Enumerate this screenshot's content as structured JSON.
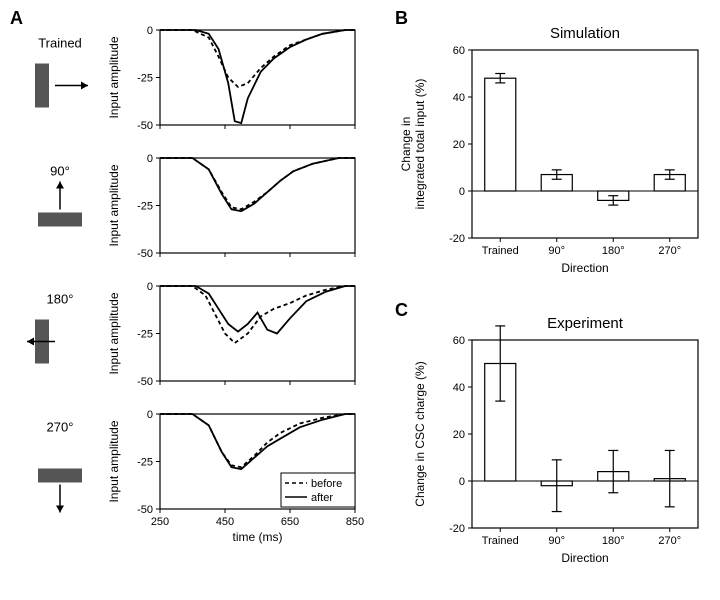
{
  "panelA": {
    "label": "A",
    "ylabel": "Input amplitude",
    "xlabel": "time (ms)",
    "xlim": [
      250,
      850
    ],
    "xticks": [
      250,
      450,
      650,
      850
    ],
    "ylim": [
      -50,
      0
    ],
    "yticks": [
      -50,
      -25,
      0
    ],
    "stimuli": [
      {
        "label": "Trained",
        "orientation": "vertical",
        "arrow": "right"
      },
      {
        "label": "90°",
        "orientation": "horizontal",
        "arrow": "up"
      },
      {
        "label": "180°",
        "orientation": "vertical",
        "arrow": "left"
      },
      {
        "label": "270°",
        "orientation": "horizontal",
        "arrow": "down"
      }
    ],
    "curves": [
      {
        "before": [
          [
            250,
            0
          ],
          [
            350,
            0
          ],
          [
            400,
            -4
          ],
          [
            430,
            -14
          ],
          [
            460,
            -25
          ],
          [
            490,
            -30
          ],
          [
            520,
            -28
          ],
          [
            560,
            -20
          ],
          [
            600,
            -14
          ],
          [
            650,
            -8
          ],
          [
            700,
            -5
          ],
          [
            750,
            -2
          ],
          [
            820,
            0
          ],
          [
            850,
            0
          ]
        ],
        "after": [
          [
            250,
            0
          ],
          [
            360,
            0
          ],
          [
            400,
            -2
          ],
          [
            430,
            -10
          ],
          [
            460,
            -28
          ],
          [
            480,
            -48
          ],
          [
            500,
            -49
          ],
          [
            520,
            -36
          ],
          [
            560,
            -22
          ],
          [
            600,
            -15
          ],
          [
            650,
            -9
          ],
          [
            700,
            -5
          ],
          [
            750,
            -2
          ],
          [
            820,
            0
          ],
          [
            850,
            0
          ]
        ]
      },
      {
        "before": [
          [
            250,
            0
          ],
          [
            350,
            0
          ],
          [
            400,
            -6
          ],
          [
            440,
            -18
          ],
          [
            470,
            -26
          ],
          [
            500,
            -27
          ],
          [
            540,
            -23
          ],
          [
            580,
            -18
          ],
          [
            620,
            -12
          ],
          [
            660,
            -7
          ],
          [
            720,
            -3
          ],
          [
            800,
            0
          ],
          [
            850,
            0
          ]
        ],
        "after": [
          [
            250,
            0
          ],
          [
            350,
            0
          ],
          [
            400,
            -6
          ],
          [
            440,
            -19
          ],
          [
            470,
            -27
          ],
          [
            500,
            -28
          ],
          [
            540,
            -24
          ],
          [
            580,
            -18
          ],
          [
            620,
            -12
          ],
          [
            660,
            -7
          ],
          [
            720,
            -3
          ],
          [
            800,
            0
          ],
          [
            850,
            0
          ]
        ]
      },
      {
        "before": [
          [
            250,
            0
          ],
          [
            350,
            0
          ],
          [
            390,
            -5
          ],
          [
            420,
            -15
          ],
          [
            450,
            -25
          ],
          [
            480,
            -30
          ],
          [
            520,
            -25
          ],
          [
            560,
            -16
          ],
          [
            600,
            -12
          ],
          [
            650,
            -9
          ],
          [
            700,
            -5
          ],
          [
            760,
            -2
          ],
          [
            820,
            0
          ],
          [
            850,
            0
          ]
        ],
        "after": [
          [
            250,
            0
          ],
          [
            360,
            0
          ],
          [
            400,
            -4
          ],
          [
            430,
            -12
          ],
          [
            460,
            -20
          ],
          [
            490,
            -24
          ],
          [
            520,
            -20
          ],
          [
            550,
            -14
          ],
          [
            580,
            -23
          ],
          [
            610,
            -25
          ],
          [
            650,
            -17
          ],
          [
            700,
            -8
          ],
          [
            760,
            -3
          ],
          [
            820,
            0
          ],
          [
            850,
            0
          ]
        ]
      },
      {
        "before": [
          [
            250,
            0
          ],
          [
            350,
            0
          ],
          [
            400,
            -6
          ],
          [
            440,
            -20
          ],
          [
            470,
            -27
          ],
          [
            500,
            -28
          ],
          [
            540,
            -22
          ],
          [
            580,
            -15
          ],
          [
            620,
            -10
          ],
          [
            680,
            -5
          ],
          [
            750,
            -2
          ],
          [
            820,
            0
          ],
          [
            850,
            0
          ]
        ],
        "after": [
          [
            250,
            0
          ],
          [
            350,
            0
          ],
          [
            400,
            -6
          ],
          [
            440,
            -20
          ],
          [
            470,
            -28
          ],
          [
            500,
            -29
          ],
          [
            540,
            -23
          ],
          [
            580,
            -17
          ],
          [
            620,
            -13
          ],
          [
            680,
            -7
          ],
          [
            750,
            -3
          ],
          [
            820,
            0
          ],
          [
            850,
            0
          ]
        ]
      }
    ],
    "legend": {
      "before": "before",
      "after": "after"
    },
    "colors": {
      "axis": "#000000",
      "before_dash": "4,3",
      "line_width": 1.8,
      "stimulus_fill": "#555555"
    }
  },
  "panelB": {
    "label": "B",
    "title": "Simulation",
    "ylabel": "Change in\nintegrated total input (%)",
    "xlabel": "Direction",
    "ylim": [
      -20,
      60
    ],
    "yticks": [
      -20,
      0,
      20,
      40,
      60
    ],
    "categories": [
      "Trained",
      "90°",
      "180°",
      "270°"
    ],
    "values": [
      48,
      7,
      -4,
      7
    ],
    "errors": [
      2,
      2,
      2,
      2
    ],
    "bar_fill": "#ffffff",
    "bar_stroke": "#000000",
    "background": "#ffffff"
  },
  "panelC": {
    "label": "C",
    "title": "Experiment",
    "ylabel": "Change in CSC charge (%)",
    "xlabel": "Direction",
    "ylim": [
      -20,
      60
    ],
    "yticks": [
      -20,
      0,
      20,
      40,
      60
    ],
    "categories": [
      "Trained",
      "90°",
      "180°",
      "270°"
    ],
    "values": [
      50,
      -2,
      4,
      1
    ],
    "errors": [
      16,
      11,
      9,
      12
    ],
    "bar_fill": "#ffffff",
    "bar_stroke": "#000000",
    "background": "#ffffff"
  },
  "layout": {
    "font_family": "Arial",
    "axis_fontsize": 12,
    "tick_fontsize": 11,
    "title_fontsize": 15,
    "label_fontsize": 13,
    "figure_bg": "#ffffff"
  }
}
